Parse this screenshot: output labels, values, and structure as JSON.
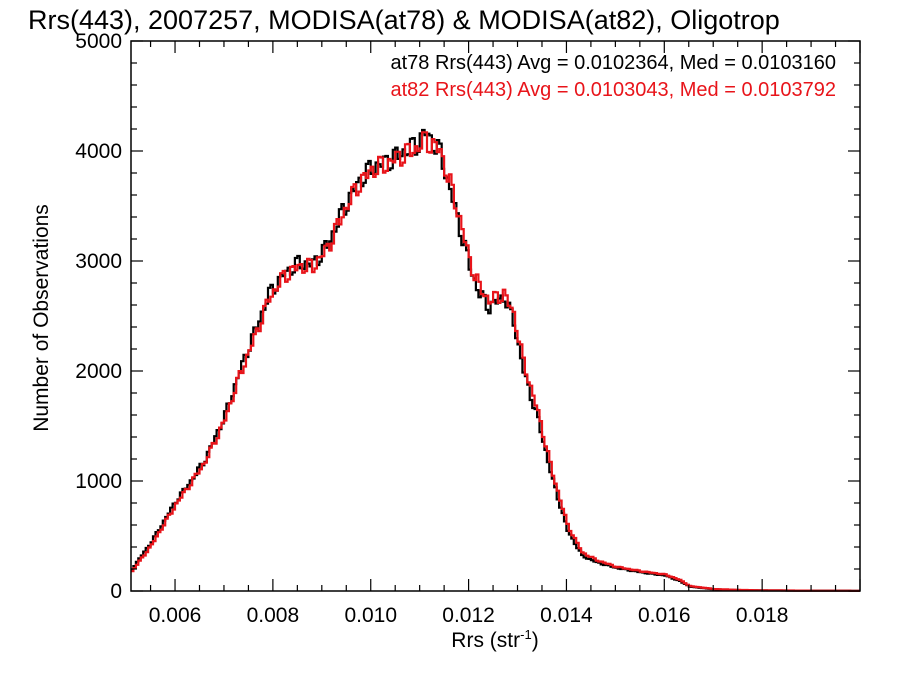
{
  "chart_data": {
    "type": "line",
    "title": "Rrs(443), 2007257, MODISA(at78) & MODISA(at82), Oligotrop",
    "xlabel": "Rrs (str",
    "xlabel_sup": "-1",
    "xlabel_close": ")",
    "ylabel": "Number of Observations",
    "xlim": [
      0.0051,
      0.02
    ],
    "ylim": [
      0,
      5000
    ],
    "xticks": [
      0.006,
      0.008,
      0.01,
      0.012,
      0.014,
      0.016,
      0.018
    ],
    "xtick_labels": [
      "0.006",
      "0.008",
      "0.010",
      "0.012",
      "0.014",
      "0.016",
      "0.018"
    ],
    "yticks": [
      0,
      1000,
      2000,
      3000,
      4000,
      5000
    ],
    "ytick_labels": [
      "0",
      "1000",
      "2000",
      "3000",
      "4000",
      "5000"
    ],
    "grid": false,
    "legend": "top-right",
    "stats": [
      {
        "text": "at78 Rrs(443) Avg = 0.0102364, Med = 0.0103160",
        "color": "#000000"
      },
      {
        "text": "at82 Rrs(443) Avg = 0.0103043, Med = 0.0103792",
        "color": "#e8141a"
      }
    ],
    "series": [
      {
        "color": "#000000",
        "x": [
          0.0051,
          0.0055,
          0.006,
          0.0063,
          0.0066,
          0.007,
          0.0073,
          0.0076,
          0.0079,
          0.0082,
          0.0085,
          0.0088,
          0.0091,
          0.0094,
          0.0097,
          0.01,
          0.0103,
          0.0106,
          0.0109,
          0.0111,
          0.0114,
          0.0116,
          0.0118,
          0.012,
          0.0122,
          0.0124,
          0.0127,
          0.0129,
          0.0131,
          0.0134,
          0.0137,
          0.014,
          0.0143,
          0.0146,
          0.015,
          0.0155,
          0.016,
          0.0163,
          0.0165,
          0.017,
          0.0175,
          0.018,
          0.019,
          0.02
        ],
        "y": [
          200,
          450,
          820,
          1000,
          1200,
          1600,
          2000,
          2350,
          2700,
          2880,
          2980,
          2970,
          3150,
          3450,
          3700,
          3850,
          3900,
          3980,
          4050,
          4170,
          3980,
          3650,
          3300,
          2950,
          2700,
          2580,
          2680,
          2450,
          2000,
          1550,
          1000,
          550,
          320,
          260,
          210,
          170,
          140,
          90,
          40,
          15,
          8,
          5,
          3,
          2
        ]
      },
      {
        "color": "#e8141a",
        "x": [
          0.0051,
          0.0055,
          0.006,
          0.0063,
          0.0066,
          0.007,
          0.0073,
          0.0076,
          0.0079,
          0.0082,
          0.0085,
          0.0088,
          0.0091,
          0.0094,
          0.0097,
          0.01,
          0.0103,
          0.0106,
          0.0109,
          0.0111,
          0.0114,
          0.0116,
          0.0118,
          0.012,
          0.0122,
          0.0124,
          0.0127,
          0.0129,
          0.0131,
          0.0134,
          0.0137,
          0.014,
          0.0143,
          0.0146,
          0.015,
          0.0155,
          0.016,
          0.0163,
          0.0165,
          0.017,
          0.0175,
          0.018,
          0.019,
          0.02
        ],
        "y": [
          180,
          420,
          790,
          980,
          1180,
          1560,
          1960,
          2300,
          2660,
          2860,
          2950,
          2950,
          3120,
          3420,
          3680,
          3830,
          3880,
          3960,
          4020,
          4100,
          4000,
          3700,
          3380,
          3000,
          2760,
          2640,
          2700,
          2520,
          2080,
          1620,
          1060,
          600,
          350,
          280,
          220,
          180,
          150,
          100,
          45,
          18,
          10,
          6,
          3,
          2
        ]
      }
    ]
  }
}
